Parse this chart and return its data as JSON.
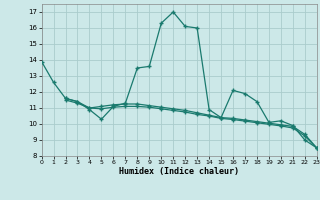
{
  "xlabel": "Humidex (Indice chaleur)",
  "bg_color": "#cce8e8",
  "grid_color": "#aacccc",
  "line_color": "#1a7a6e",
  "xlim": [
    0,
    23
  ],
  "ylim": [
    8,
    17.5
  ],
  "xticks": [
    0,
    1,
    2,
    3,
    4,
    5,
    6,
    7,
    8,
    9,
    10,
    11,
    12,
    13,
    14,
    15,
    16,
    17,
    18,
    19,
    20,
    21,
    22,
    23
  ],
  "yticks": [
    8,
    9,
    10,
    11,
    12,
    13,
    14,
    15,
    16,
    17
  ],
  "curve1_x": [
    0,
    1,
    2,
    3,
    4,
    5,
    6,
    7,
    8,
    9,
    10,
    11,
    12,
    13,
    14,
    15,
    16,
    17,
    18,
    19,
    20,
    21,
    22,
    23
  ],
  "curve1_y": [
    13.9,
    12.6,
    11.6,
    11.4,
    10.9,
    10.3,
    11.1,
    11.3,
    13.5,
    13.6,
    16.3,
    17.0,
    16.1,
    16.0,
    10.9,
    10.4,
    12.1,
    11.9,
    11.4,
    10.1,
    10.2,
    9.9,
    9.0,
    8.5
  ],
  "curve2_x": [
    2,
    3,
    4,
    5,
    6,
    7,
    8,
    9,
    10,
    11,
    12,
    13,
    14,
    15,
    16,
    17,
    18,
    19,
    20,
    21,
    22,
    23
  ],
  "curve2_y": [
    11.6,
    11.4,
    11.0,
    11.1,
    11.2,
    11.25,
    11.25,
    11.15,
    11.05,
    10.95,
    10.85,
    10.7,
    10.55,
    10.4,
    10.35,
    10.25,
    10.15,
    10.05,
    9.95,
    9.85,
    9.35,
    8.5
  ],
  "curve3_x": [
    2,
    3,
    4,
    5,
    6,
    7,
    8,
    9,
    10,
    11,
    12,
    13,
    14,
    15,
    16,
    17,
    18,
    19,
    20,
    21,
    22,
    23
  ],
  "curve3_y": [
    11.5,
    11.3,
    11.0,
    10.95,
    11.05,
    11.1,
    11.1,
    11.05,
    10.95,
    10.85,
    10.75,
    10.6,
    10.5,
    10.35,
    10.28,
    10.18,
    10.08,
    9.98,
    9.88,
    9.75,
    9.25,
    8.5
  ],
  "marker": "+",
  "marker_size": 3,
  "lw": 0.9
}
